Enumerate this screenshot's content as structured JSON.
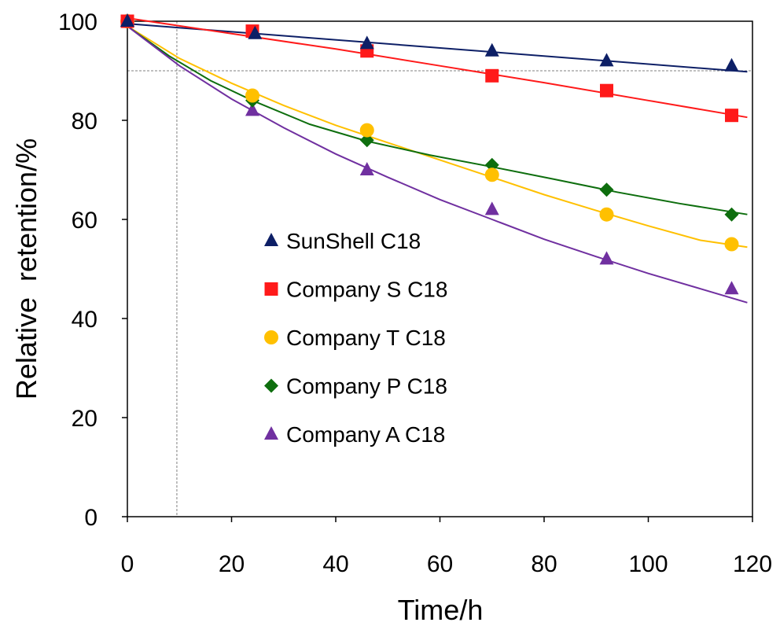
{
  "chart_data": {
    "type": "scatter",
    "title": "",
    "xlabel": "Time/h",
    "ylabel": "Relative  retention/%",
    "xlim": [
      0,
      120
    ],
    "ylim": [
      0,
      100
    ],
    "xticks": [
      0,
      20,
      40,
      60,
      80,
      100,
      120
    ],
    "yticks": [
      0,
      20,
      40,
      60,
      80,
      100
    ],
    "grid": false,
    "legend_position": "center-left",
    "reference_lines": {
      "x": 9.5,
      "y": 90
    },
    "series": [
      {
        "name": "SunShell C18",
        "marker": "triangle",
        "color": "#0d1f66",
        "x": [
          0,
          24.5,
          46,
          70,
          92,
          116
        ],
        "y": [
          100,
          97.5,
          95.5,
          94,
          92,
          91
        ],
        "fit": [
          [
            0,
            99.5
          ],
          [
            119,
            89.8
          ]
        ]
      },
      {
        "name": "Company S C18",
        "marker": "square",
        "color": "#ff1a1a",
        "x": [
          0,
          24,
          46,
          70,
          92,
          116
        ],
        "y": [
          100,
          98,
          94,
          89,
          86,
          81
        ],
        "fit": [
          [
            -1,
            100.8
          ],
          [
            20,
            97.5
          ],
          [
            40,
            94.4
          ],
          [
            60,
            91
          ],
          [
            80,
            87.6
          ],
          [
            100,
            84
          ],
          [
            119,
            80.6
          ]
        ]
      },
      {
        "name": "Company T C18",
        "marker": "circle",
        "color": "#ffc000",
        "x": [
          0,
          24,
          46,
          70,
          92,
          116
        ],
        "y": [
          100,
          85,
          78,
          69,
          61,
          55
        ],
        "fit": [
          [
            0,
            99
          ],
          [
            10,
            92.5
          ],
          [
            20,
            87.5
          ],
          [
            30,
            83
          ],
          [
            40,
            79
          ],
          [
            50,
            75.5
          ],
          [
            60,
            72
          ],
          [
            70,
            68.5
          ],
          [
            80,
            65
          ],
          [
            90,
            61.8
          ],
          [
            100,
            58.7
          ],
          [
            110,
            55.8
          ],
          [
            119,
            54.4
          ]
        ]
      },
      {
        "name": "Company P C18",
        "marker": "diamond",
        "color": "#0e6e0e",
        "x": [
          0,
          24,
          46,
          70,
          92,
          116
        ],
        "y": [
          100,
          84,
          76,
          71,
          66,
          61
        ],
        "fit": [
          [
            0,
            99
          ],
          [
            8,
            93
          ],
          [
            16,
            88
          ],
          [
            24,
            84
          ],
          [
            35,
            79.2
          ],
          [
            46,
            75.8
          ],
          [
            58,
            73
          ],
          [
            70,
            70.6
          ],
          [
            82,
            68.1
          ],
          [
            94,
            65.5
          ],
          [
            106,
            63.2
          ],
          [
            119,
            61
          ]
        ]
      },
      {
        "name": "Company A C18",
        "marker": "triangle",
        "color": "#7030a0",
        "x": [
          0,
          24,
          46,
          70,
          92,
          116
        ],
        "y": [
          100,
          82,
          70,
          62,
          52,
          46
        ],
        "fit": [
          [
            0,
            99
          ],
          [
            10,
            91
          ],
          [
            20,
            84.3
          ],
          [
            30,
            78.5
          ],
          [
            40,
            73.2
          ],
          [
            50,
            68.5
          ],
          [
            60,
            64
          ],
          [
            70,
            60
          ],
          [
            80,
            56
          ],
          [
            90,
            52.5
          ],
          [
            100,
            49.1
          ],
          [
            110,
            46
          ],
          [
            119,
            43.2
          ]
        ]
      }
    ]
  }
}
